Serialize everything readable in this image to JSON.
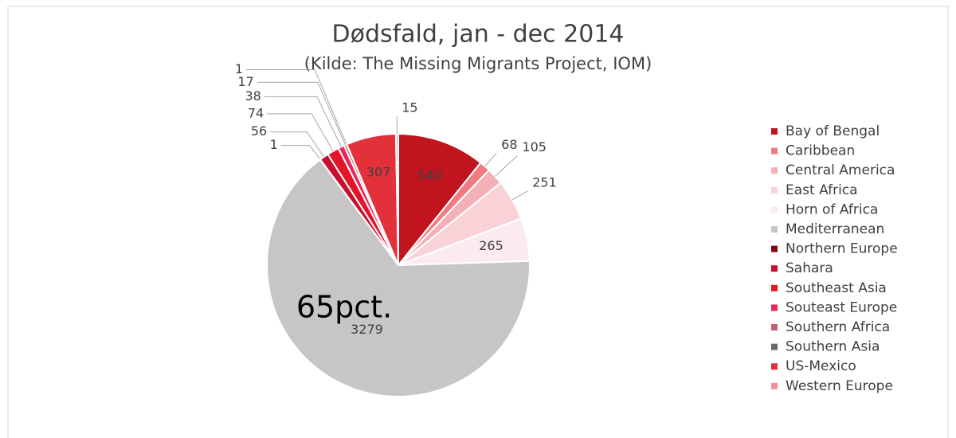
{
  "chart_data": {
    "type": "pie",
    "title": "Dødsfald, jan - dec 2014",
    "subtitle": "(Kilde: The Missing Migrants Project, IOM)",
    "annotation": "65pct.",
    "categories": [
      "Bay of Bengal",
      "Caribbean",
      "Central America",
      "East Africa",
      "Horn of Africa",
      "Mediterranean",
      "Northern Europe",
      "Sahara",
      "Southeast Asia",
      "Souteast Europe",
      "Southern Africa",
      "Southern Asia",
      "US-Mexico",
      "Western Europe"
    ],
    "values": [
      540,
      68,
      105,
      251,
      265,
      3279,
      1,
      56,
      74,
      38,
      17,
      1,
      307,
      15
    ],
    "colors": [
      "#c0141f",
      "#f07c82",
      "#f3b0b7",
      "#f9d2d8",
      "#fbeaee",
      "#c7c5c6",
      "#7a0c12",
      "#c8102e",
      "#e3152b",
      "#e8285a",
      "#c06070",
      "#6a6a6a",
      "#e2313b",
      "#f0909a"
    ],
    "legend": "right"
  }
}
